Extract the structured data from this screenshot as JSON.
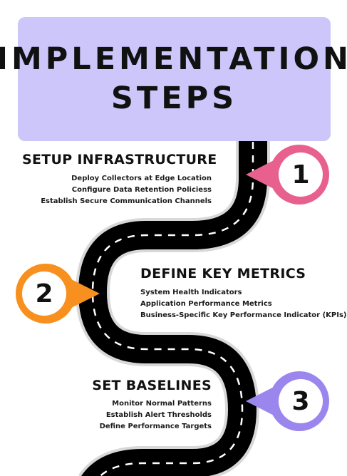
{
  "title": {
    "line1": "IMPLEMENTATION",
    "line2": "STEPS"
  },
  "steps": [
    {
      "number": "1",
      "heading": "SETUP INFRASTRUCTURE",
      "items": [
        "Deploy Collectors at Edge Location",
        "Configure Data Retention Policiess",
        "Establish Secure Communication Channels"
      ],
      "color": "#e8608e"
    },
    {
      "number": "2",
      "heading": "DEFINE KEY METRICS",
      "items": [
        "System Health Indicators",
        "Application Performance Metrics",
        "Business-Specific Key Performance Indicator (KPIs)"
      ],
      "color": "#f7901e"
    },
    {
      "number": "3",
      "heading": "SET BASELINES",
      "items": [
        "Monitor Normal Patterns",
        "Establish Alert Thresholds",
        "Define Performance Targets"
      ],
      "color": "#9b86ee"
    }
  ],
  "colors": {
    "title_background": "#cdc6fb",
    "road": "#000000",
    "road_marking": "#ffffff"
  }
}
